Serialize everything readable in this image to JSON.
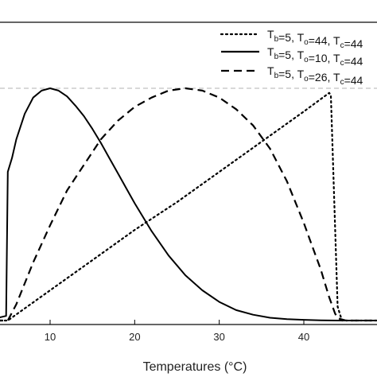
{
  "chart_data": {
    "type": "line",
    "title": "",
    "xlabel": "Temperatures (°C)",
    "ylabel": "",
    "xlim": [
      -1,
      49
    ],
    "ylim": [
      0,
      1.05
    ],
    "x_ticks": [
      10,
      20,
      30,
      40
    ],
    "reference_line": {
      "y": 1.0,
      "style": "dashed",
      "color": "#b0b0b0"
    },
    "legend_position": "top-right",
    "grid": false,
    "series": [
      {
        "name": "Tb=5, To=44, Tc=44",
        "legend": {
          "parts": [
            [
              "T",
              ""
            ],
            [
              "b",
              "sub"
            ],
            [
              "=5, T",
              ""
            ],
            [
              "o",
              "sub"
            ],
            [
              "=44, T",
              ""
            ],
            [
              "c",
              "sub"
            ],
            [
              "=44",
              ""
            ]
          ]
        },
        "style": "dotted",
        "x": [
          -1,
          5,
          10,
          15,
          20,
          25,
          30,
          35,
          40,
          43,
          43.2,
          44,
          44.5,
          49
        ],
        "y": [
          0,
          0,
          0.13,
          0.26,
          0.39,
          0.51,
          0.64,
          0.77,
          0.9,
          0.98,
          0.97,
          0.06,
          0,
          0
        ]
      },
      {
        "name": "Tb=5, To=10, Tc=44",
        "legend": {
          "parts": [
            [
              "T",
              ""
            ],
            [
              "b",
              "sub"
            ],
            [
              "=5, T",
              ""
            ],
            [
              "o",
              "sub"
            ],
            [
              "=10, T",
              ""
            ],
            [
              "c",
              "sub"
            ],
            [
              "=44",
              ""
            ]
          ]
        },
        "style": "solid",
        "x": [
          -1,
          2.5,
          4.8,
          5,
          5.5,
          6,
          7,
          8,
          9,
          10,
          11,
          12,
          13,
          14,
          15,
          16,
          17,
          18,
          19,
          20,
          22,
          24,
          26,
          28,
          30,
          32,
          34,
          36,
          38,
          40,
          42,
          44,
          49
        ],
        "y": [
          0,
          0,
          0.02,
          0.64,
          0.7,
          0.78,
          0.89,
          0.96,
          0.99,
          1.0,
          0.99,
          0.965,
          0.925,
          0.88,
          0.825,
          0.765,
          0.7,
          0.635,
          0.57,
          0.505,
          0.385,
          0.28,
          0.195,
          0.13,
          0.08,
          0.045,
          0.025,
          0.012,
          0.006,
          0.003,
          0.001,
          0,
          0
        ]
      },
      {
        "name": "Tb=5, To=26, Tc=44",
        "legend": {
          "parts": [
            [
              "T",
              ""
            ],
            [
              "b",
              "sub"
            ],
            [
              "=5, T",
              ""
            ],
            [
              "o",
              "sub"
            ],
            [
              "=26, T",
              ""
            ],
            [
              "c",
              "sub"
            ],
            [
              "=44",
              ""
            ]
          ]
        },
        "style": "dashed",
        "x": [
          -1,
          5,
          6,
          8,
          10,
          12,
          14,
          16,
          18,
          20,
          22,
          24,
          26,
          28,
          30,
          32,
          34,
          36,
          38,
          40,
          41,
          42,
          43,
          43.7,
          44,
          45,
          49
        ],
        "y": [
          0,
          0,
          0.07,
          0.25,
          0.41,
          0.56,
          0.67,
          0.78,
          0.86,
          0.92,
          0.96,
          0.99,
          1.0,
          0.99,
          0.96,
          0.91,
          0.84,
          0.74,
          0.6,
          0.42,
          0.32,
          0.22,
          0.1,
          0.03,
          0.01,
          0,
          0
        ]
      }
    ]
  }
}
